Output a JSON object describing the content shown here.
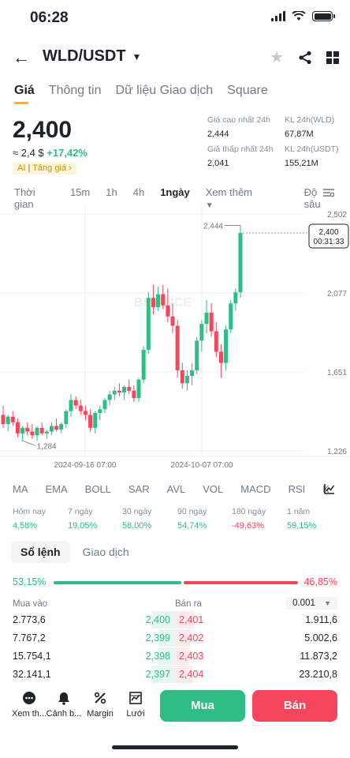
{
  "status": {
    "time": "06:28"
  },
  "header": {
    "pair": "WLD/USDT"
  },
  "tabs": [
    "Giá",
    "Thông tin",
    "Dữ liệu Giao dịch",
    "Square"
  ],
  "price": {
    "last": "2,400",
    "fiat": "≈ 2,4 $",
    "change": "+17,42%",
    "ai_label": "AI",
    "ai_text": "Tăng giá"
  },
  "stats": {
    "high_label": "Giá cao nhất 24h",
    "high": "2,444",
    "vol_wld_label": "KL 24h(WLD)",
    "vol_wld": "67,87M",
    "low_label": "Giá thấp nhất 24h",
    "low": "2,041",
    "vol_usdt_label": "KL 24h(USDT)",
    "vol_usdt": "155,21M"
  },
  "timeframes": [
    "Thời gian",
    "15m",
    "1h",
    "4h",
    "1ngày",
    "Xem thêm",
    "Độ sâu"
  ],
  "chart_data": {
    "type": "candlestick",
    "y_ticks": [
      "2,502",
      "2,077",
      "1,651",
      "1,226"
    ],
    "x_ticks": [
      "2024-09-16 07:00",
      "2024-10-07 07:00"
    ],
    "ylim": [
      1.226,
      2.502
    ],
    "max_label": "2,444",
    "min_label": "1,284",
    "current_price": "2,400",
    "countdown": "00:31:33",
    "candles": [
      {
        "o": 1.42,
        "h": 1.47,
        "l": 1.35,
        "c": 1.37
      },
      {
        "o": 1.37,
        "h": 1.42,
        "l": 1.33,
        "c": 1.41
      },
      {
        "o": 1.41,
        "h": 1.44,
        "l": 1.36,
        "c": 1.38
      },
      {
        "o": 1.38,
        "h": 1.4,
        "l": 1.3,
        "c": 1.32
      },
      {
        "o": 1.32,
        "h": 1.36,
        "l": 1.28,
        "c": 1.35
      },
      {
        "o": 1.35,
        "h": 1.38,
        "l": 1.31,
        "c": 1.33
      },
      {
        "o": 1.33,
        "h": 1.37,
        "l": 1.29,
        "c": 1.31
      },
      {
        "o": 1.31,
        "h": 1.36,
        "l": 1.28,
        "c": 1.35
      },
      {
        "o": 1.35,
        "h": 1.38,
        "l": 1.31,
        "c": 1.32
      },
      {
        "o": 1.32,
        "h": 1.34,
        "l": 1.29,
        "c": 1.33
      },
      {
        "o": 1.33,
        "h": 1.38,
        "l": 1.31,
        "c": 1.36
      },
      {
        "o": 1.36,
        "h": 1.4,
        "l": 1.33,
        "c": 1.34
      },
      {
        "o": 1.34,
        "h": 1.38,
        "l": 1.32,
        "c": 1.37
      },
      {
        "o": 1.37,
        "h": 1.45,
        "l": 1.35,
        "c": 1.44
      },
      {
        "o": 1.44,
        "h": 1.53,
        "l": 1.41,
        "c": 1.5
      },
      {
        "o": 1.5,
        "h": 1.52,
        "l": 1.45,
        "c": 1.47
      },
      {
        "o": 1.47,
        "h": 1.5,
        "l": 1.42,
        "c": 1.44
      },
      {
        "o": 1.44,
        "h": 1.47,
        "l": 1.39,
        "c": 1.42
      },
      {
        "o": 1.42,
        "h": 1.45,
        "l": 1.33,
        "c": 1.35
      },
      {
        "o": 1.35,
        "h": 1.44,
        "l": 1.32,
        "c": 1.43
      },
      {
        "o": 1.43,
        "h": 1.47,
        "l": 1.39,
        "c": 1.45
      },
      {
        "o": 1.45,
        "h": 1.51,
        "l": 1.43,
        "c": 1.5
      },
      {
        "o": 1.5,
        "h": 1.55,
        "l": 1.47,
        "c": 1.53
      },
      {
        "o": 1.53,
        "h": 1.57,
        "l": 1.5,
        "c": 1.55
      },
      {
        "o": 1.55,
        "h": 1.59,
        "l": 1.52,
        "c": 1.54
      },
      {
        "o": 1.54,
        "h": 1.58,
        "l": 1.5,
        "c": 1.57
      },
      {
        "o": 1.57,
        "h": 1.61,
        "l": 1.53,
        "c": 1.55
      },
      {
        "o": 1.55,
        "h": 1.58,
        "l": 1.49,
        "c": 1.51
      },
      {
        "o": 1.51,
        "h": 1.62,
        "l": 1.49,
        "c": 1.61
      },
      {
        "o": 1.61,
        "h": 1.79,
        "l": 1.59,
        "c": 1.77
      },
      {
        "o": 1.77,
        "h": 2.08,
        "l": 1.75,
        "c": 2.05
      },
      {
        "o": 2.05,
        "h": 2.12,
        "l": 1.96,
        "c": 2.0
      },
      {
        "o": 2.0,
        "h": 2.11,
        "l": 1.98,
        "c": 2.07
      },
      {
        "o": 2.07,
        "h": 2.12,
        "l": 1.99,
        "c": 2.01
      },
      {
        "o": 2.01,
        "h": 2.1,
        "l": 1.92,
        "c": 1.95
      },
      {
        "o": 1.95,
        "h": 2.02,
        "l": 1.86,
        "c": 1.9
      },
      {
        "o": 1.9,
        "h": 1.93,
        "l": 1.62,
        "c": 1.66
      },
      {
        "o": 1.66,
        "h": 1.7,
        "l": 1.56,
        "c": 1.59
      },
      {
        "o": 1.59,
        "h": 1.66,
        "l": 1.55,
        "c": 1.63
      },
      {
        "o": 1.63,
        "h": 1.7,
        "l": 1.58,
        "c": 1.66
      },
      {
        "o": 1.66,
        "h": 1.84,
        "l": 1.64,
        "c": 1.82
      },
      {
        "o": 1.82,
        "h": 1.93,
        "l": 1.76,
        "c": 1.91
      },
      {
        "o": 1.91,
        "h": 2.04,
        "l": 1.86,
        "c": 1.97
      },
      {
        "o": 1.97,
        "h": 2.02,
        "l": 1.84,
        "c": 1.87
      },
      {
        "o": 1.87,
        "h": 1.92,
        "l": 1.73,
        "c": 1.76
      },
      {
        "o": 1.76,
        "h": 1.8,
        "l": 1.62,
        "c": 1.7
      },
      {
        "o": 1.7,
        "h": 1.9,
        "l": 1.66,
        "c": 1.88
      },
      {
        "o": 1.88,
        "h": 2.04,
        "l": 1.86,
        "c": 2.02
      },
      {
        "o": 2.02,
        "h": 2.1,
        "l": 1.98,
        "c": 2.08
      },
      {
        "o": 2.08,
        "h": 2.44,
        "l": 2.05,
        "c": 2.4
      }
    ]
  },
  "indicators": [
    "MA",
    "EMA",
    "BOLL",
    "SAR",
    "AVL",
    "VOL",
    "MACD",
    "RSI",
    "K"
  ],
  "performance": [
    {
      "label": "Hôm nay",
      "value": "4,58%",
      "dir": "up"
    },
    {
      "label": "7 ngày",
      "value": "19,05%",
      "dir": "up"
    },
    {
      "label": "30 ngày",
      "value": "58,00%",
      "dir": "up"
    },
    {
      "label": "90 ngày",
      "value": "54,74%",
      "dir": "up"
    },
    {
      "label": "180 ngày",
      "value": "-49,63%",
      "dir": "down"
    },
    {
      "label": "1 năm",
      "value": "59,15%",
      "dir": "up"
    }
  ],
  "orderbook": {
    "tab_active": "Sổ lệnh",
    "tab_other": "Giao dịch",
    "buy_ratio": "53,15%",
    "sell_ratio": "46,85%",
    "buy_label": "Mua vào",
    "sell_label": "Bán ra",
    "precision": "0.001",
    "rows": [
      {
        "bid_qty": "2.773,6",
        "bid": "2,400",
        "ask": "2,401",
        "ask_qty": "1.911,6"
      },
      {
        "bid_qty": "7.767,2",
        "bid": "2,399",
        "ask": "2,402",
        "ask_qty": "5.002,6"
      },
      {
        "bid_qty": "15.754,1",
        "bid": "2,398",
        "ask": "2,403",
        "ask_qty": "11.873,2"
      },
      {
        "bid_qty": "32.141,1",
        "bid": "2,397",
        "ask": "2,404",
        "ask_qty": "23.210,8"
      }
    ]
  },
  "bottom": {
    "more": "Xem th...",
    "alert": "Cảnh b...",
    "margin": "Margin",
    "grid": "Lưới",
    "buy": "Mua",
    "sell": "Bán"
  }
}
